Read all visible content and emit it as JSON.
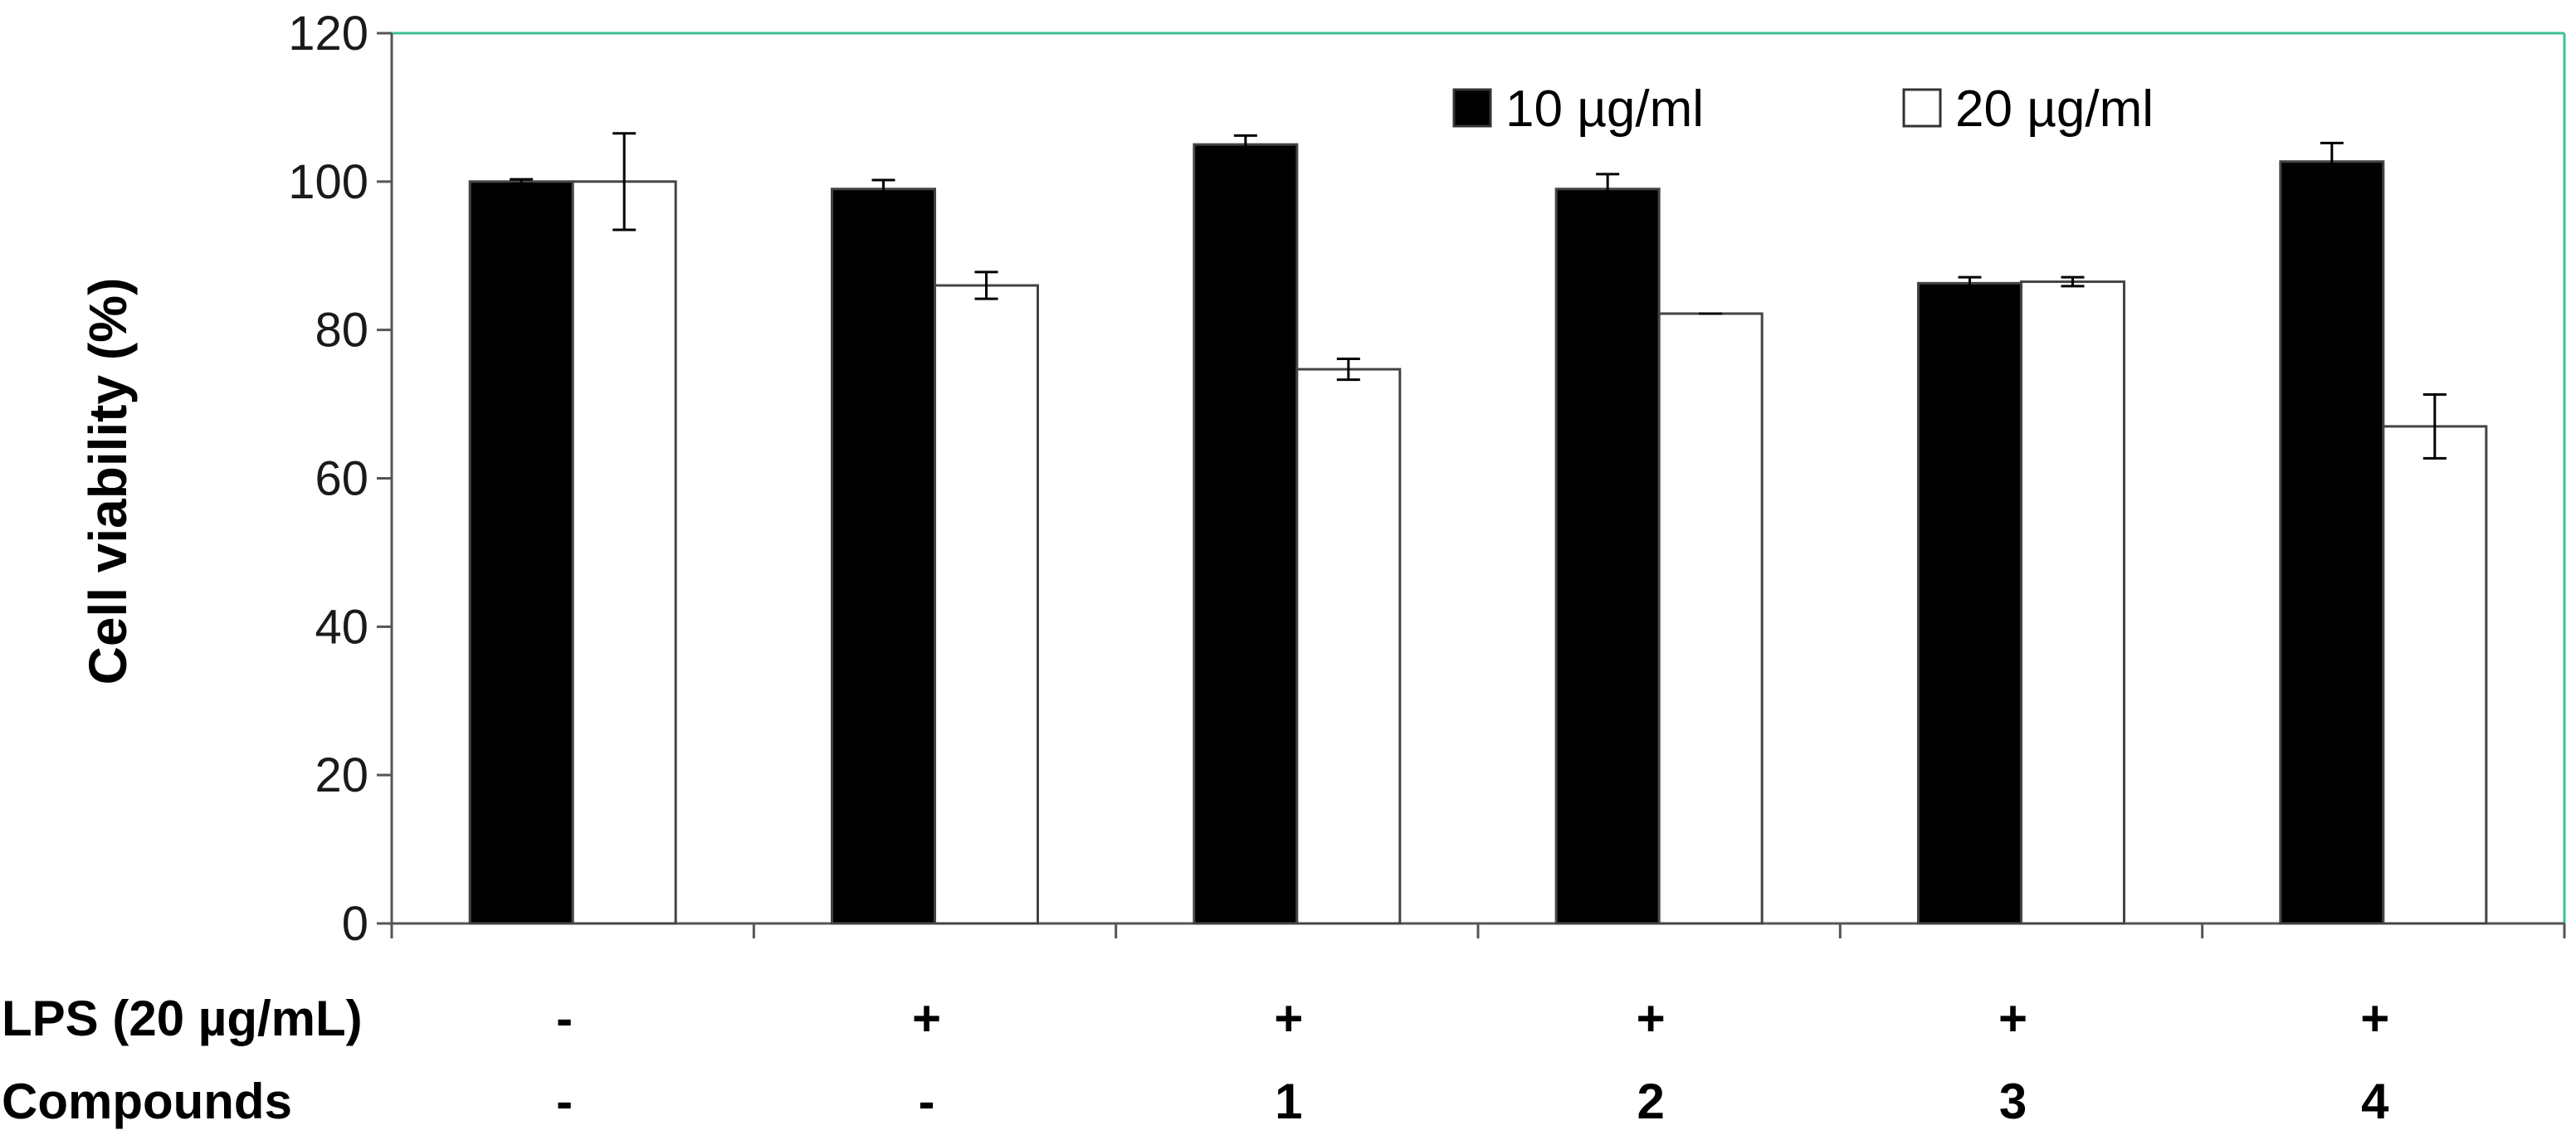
{
  "chart_data": {
    "type": "bar",
    "ylabel": "Cell viability (%)",
    "ylim": [
      0,
      120
    ],
    "yticks": [
      "0",
      "20",
      "40",
      "60",
      "80",
      "100",
      "120"
    ],
    "groups": 6,
    "series": [
      {
        "name": "10 µg/ml",
        "color": "#000000",
        "values": [
          100,
          99,
          105,
          99,
          86.3,
          102.7
        ],
        "errors": [
          0.3,
          1.2,
          1.2,
          2.0,
          0.8,
          2.5
        ]
      },
      {
        "name": "20 µg/ml",
        "color": "#ffffff",
        "values": [
          100,
          86,
          74.7,
          82.2,
          86.5,
          67
        ],
        "errors": [
          6.5,
          1.8,
          1.4,
          0,
          0.6,
          4.3
        ]
      }
    ],
    "legend_position": "top-right",
    "condition_rows": [
      {
        "label": "LPS (20 µg/mL)",
        "values": [
          "-",
          "+",
          "+",
          "+",
          "+",
          "+"
        ]
      },
      {
        "label": "Compounds",
        "values": [
          "-",
          "-",
          "1",
          "2",
          "3",
          "4"
        ]
      }
    ],
    "plot_border_color": "#3dbf96"
  }
}
